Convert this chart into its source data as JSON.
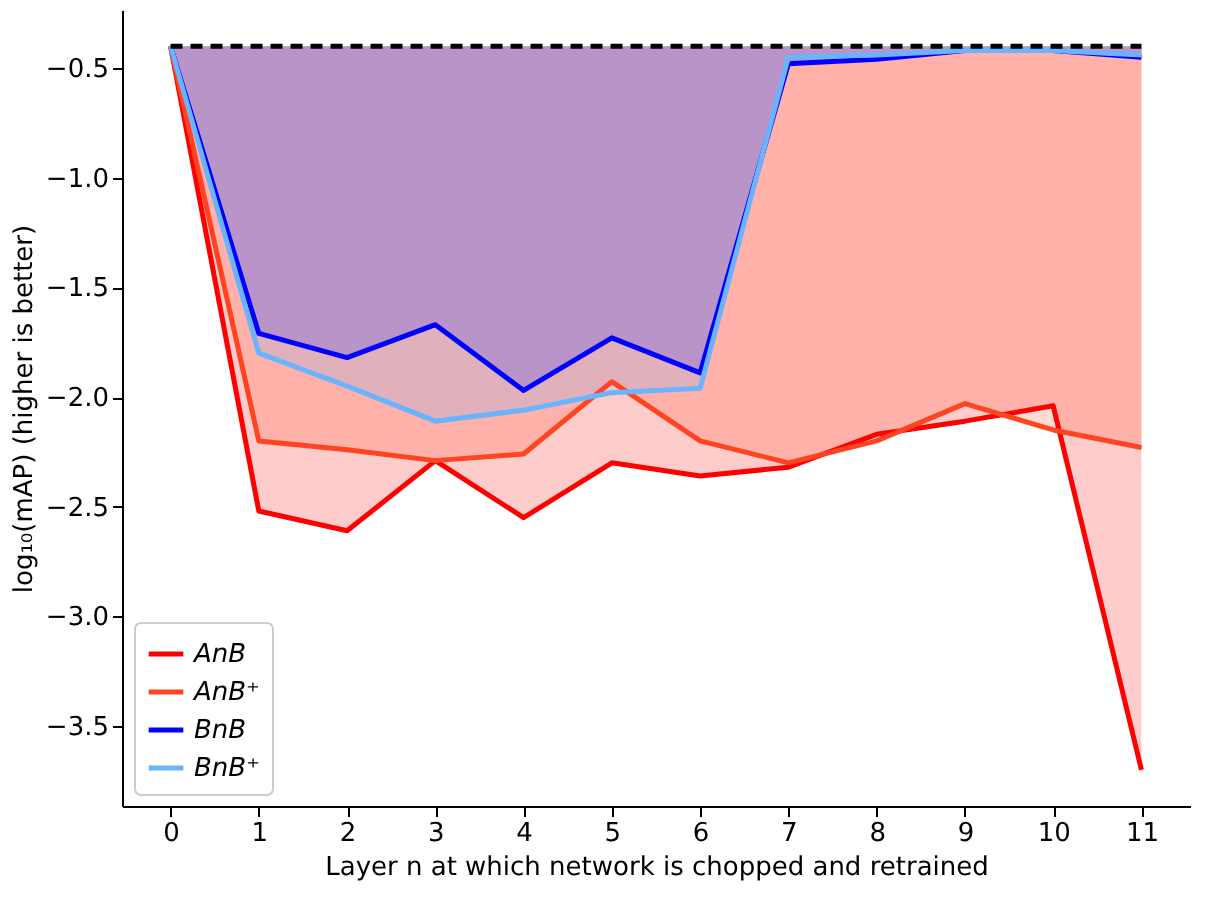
{
  "chart_data": {
    "type": "line",
    "xlabel": "Layer n at which network is chopped and retrained",
    "ylabel": "log₁₀(mAP) (higher is better)",
    "x": [
      0,
      1,
      2,
      3,
      4,
      5,
      6,
      7,
      8,
      9,
      10,
      11
    ],
    "series": [
      {
        "name": "AnB",
        "color": "#ff0000",
        "values": [
          -0.4,
          -2.52,
          -2.61,
          -2.29,
          -2.55,
          -2.3,
          -2.36,
          -2.32,
          -2.17,
          -2.11,
          -2.04,
          -3.7
        ],
        "lower": [
          -0.4,
          -2.52,
          -2.61,
          -2.29,
          -2.55,
          -2.3,
          -2.36,
          -2.32,
          -2.17,
          -2.11,
          -2.04,
          -3.7
        ],
        "upper": [
          -0.4,
          -0.4,
          -0.4,
          -0.4,
          -0.4,
          -0.4,
          -0.4,
          -0.4,
          -0.4,
          -0.4,
          -0.4,
          -0.4
        ]
      },
      {
        "name": "AnB⁺",
        "color": "#ff4422",
        "values": [
          -0.4,
          -2.2,
          -2.24,
          -2.29,
          -2.26,
          -1.93,
          -2.2,
          -2.3,
          -2.2,
          -2.03,
          -2.15,
          -2.23
        ],
        "lower": [
          -0.4,
          -2.2,
          -2.24,
          -2.29,
          -2.26,
          -1.93,
          -2.2,
          -2.3,
          -2.2,
          -2.03,
          -2.15,
          -2.23
        ],
        "upper": [
          -0.4,
          -0.4,
          -0.4,
          -0.4,
          -0.4,
          -0.4,
          -0.4,
          -0.4,
          -0.4,
          -0.4,
          -0.4,
          -0.4
        ]
      },
      {
        "name": "BnB",
        "color": "#0000ff",
        "values": [
          -0.4,
          -1.71,
          -1.82,
          -1.67,
          -1.97,
          -1.73,
          -1.89,
          -0.48,
          -0.46,
          -0.42,
          -0.42,
          -0.45
        ],
        "lower": [
          -0.4,
          -1.71,
          -1.82,
          -1.67,
          -1.97,
          -1.73,
          -1.89,
          -0.48,
          -0.46,
          -0.42,
          -0.42,
          -0.45
        ],
        "upper": [
          -0.4,
          -0.4,
          -0.4,
          -0.4,
          -0.4,
          -0.4,
          -0.4,
          -0.4,
          -0.4,
          -0.4,
          -0.4,
          -0.4
        ]
      },
      {
        "name": "BnB⁺",
        "color": "#6ab4ff",
        "values": [
          -0.4,
          -1.8,
          -1.95,
          -2.11,
          -2.06,
          -1.98,
          -1.96,
          -0.45,
          -0.44,
          -0.42,
          -0.42,
          -0.44
        ],
        "lower": [
          -0.4,
          -1.8,
          -1.95,
          -2.11,
          -2.06,
          -1.98,
          -1.96,
          -0.45,
          -0.44,
          -0.42,
          -0.42,
          -0.44
        ],
        "upper": [
          -0.4,
          -0.4,
          -0.4,
          -0.4,
          -0.4,
          -0.4,
          -0.4,
          -0.4,
          -0.4,
          -0.4,
          -0.4,
          -0.4
        ]
      }
    ],
    "ref_lines": [
      {
        "axis": "y",
        "value": -0.4,
        "color": "#000000",
        "line_style": "dashed"
      }
    ],
    "xlim": [
      -0.55,
      11.55
    ],
    "xticks": [
      0,
      1,
      2,
      3,
      4,
      5,
      6,
      7,
      8,
      9,
      10,
      11
    ],
    "ylim": [
      -3.865,
      -0.235
    ],
    "yticks": [
      {
        "value": -3.5,
        "label": "−3.5"
      },
      {
        "value": -3,
        "label": "−3.0"
      },
      {
        "value": -2.5,
        "label": "−2.5"
      },
      {
        "value": -2,
        "label": "−2.0"
      },
      {
        "value": -1.5,
        "label": "−1.5"
      },
      {
        "value": -1,
        "label": "−1.0"
      },
      {
        "value": -0.5,
        "label": "−0.5"
      }
    ],
    "grid": false,
    "legend": "bottom left",
    "line_style": "solid",
    "marker": "none"
  }
}
